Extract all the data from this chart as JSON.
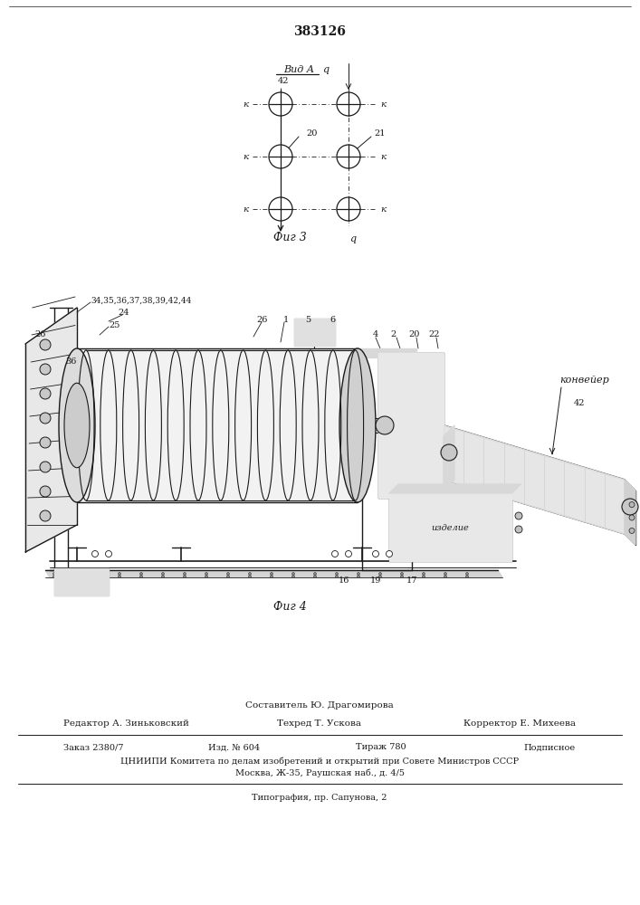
{
  "patent_number": "383126",
  "background_color": "#ffffff",
  "line_color": "#1a1a1a",
  "fig_width": 7.07,
  "fig_height": 10.0,
  "dpi": 100,
  "bottom_text_line1": "Составитель Ю. Драгомирова",
  "bottom_text_line2_left": "Редактор А. Зиньковский",
  "bottom_text_line2_mid": "Техред Т. Ускова",
  "bottom_text_line2_right": "Корректор Е. Михеева",
  "bottom_text_line3a": "Заказ 2380/7",
  "bottom_text_line3b": "Изд. № 604",
  "bottom_text_line3c": "Тираж 780",
  "bottom_text_line3d": "Подписное",
  "bottom_text_line4": "ЦНИИПИ Комитета по делам изобретений и открытий при Совете Министров СССР",
  "bottom_text_line5": "Москва, Ж-35, Раушская наб., д. 4/5",
  "bottom_text_line6": "Типография, пр. Сапунова, 2",
  "fig3_label": "Фиг 3",
  "fig4_label": "Фиг 4",
  "vid_label": "Вид А",
  "conveyer_label": "конвейер",
  "izdelie_label": "изделие"
}
